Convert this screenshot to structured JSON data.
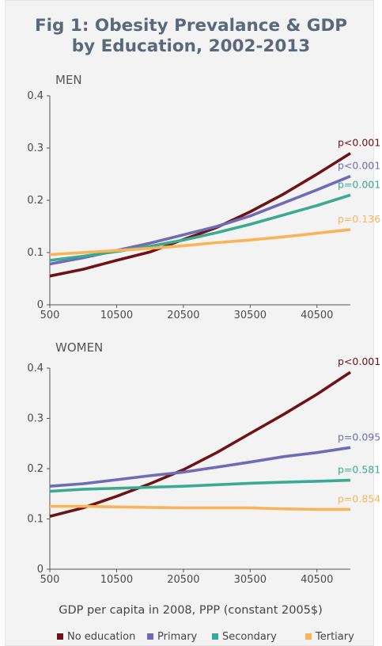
{
  "title_line1": "Fig 1: Obesity Prevalance & GDP",
  "title_line2": "by Education, 2002-2013",
  "xlabel": "GDP per capita in 2008, PPP (constant 2005$)",
  "colors": {
    "No education": "#6e1216",
    "Primary": "#6f6bb5",
    "Secondary": "#3aaa90",
    "Tertiary": "#f9b45a"
  },
  "chart_data": [
    {
      "type": "line",
      "title": "MEN",
      "x": [
        500,
        5500,
        10500,
        15500,
        20500,
        25500,
        30500,
        35500,
        40500,
        45500
      ],
      "xticks": [
        500,
        10500,
        20500,
        30500,
        40500
      ],
      "xlim": [
        500,
        45500
      ],
      "ylim": [
        0,
        0.4
      ],
      "yticks": [
        "0",
        "0.1",
        "0.2",
        "0.3",
        "0.4"
      ],
      "ytick_values": [
        0,
        0.1,
        0.2,
        0.3,
        0.4
      ],
      "series": [
        {
          "name": "No education",
          "values": [
            0.055,
            0.068,
            0.085,
            0.101,
            0.125,
            0.148,
            0.178,
            0.212,
            0.25,
            0.29
          ],
          "pvalue": "p<0.001"
        },
        {
          "name": "Primary",
          "values": [
            0.078,
            0.09,
            0.104,
            0.118,
            0.134,
            0.15,
            0.17,
            0.195,
            0.22,
            0.246
          ],
          "pvalue": "p<0.001"
        },
        {
          "name": "Secondary",
          "values": [
            0.085,
            0.093,
            0.102,
            0.112,
            0.124,
            0.138,
            0.154,
            0.172,
            0.19,
            0.21
          ],
          "pvalue": "p=0.001"
        },
        {
          "name": "Tertiary",
          "values": [
            0.096,
            0.1,
            0.104,
            0.108,
            0.113,
            0.119,
            0.124,
            0.13,
            0.137,
            0.144
          ],
          "pvalue": "p=0.136"
        }
      ]
    },
    {
      "type": "line",
      "title": "WOMEN",
      "x": [
        500,
        5500,
        10500,
        15500,
        20500,
        25500,
        30500,
        35500,
        40500,
        45500
      ],
      "xticks": [
        500,
        10500,
        20500,
        30500,
        40500
      ],
      "xlim": [
        500,
        45500
      ],
      "ylim": [
        0,
        0.4
      ],
      "yticks": [
        "0",
        "0.1",
        "0.2",
        "0.3",
        "0.4"
      ],
      "ytick_values": [
        0,
        0.1,
        0.2,
        0.3,
        0.4
      ],
      "series": [
        {
          "name": "No education",
          "values": [
            0.105,
            0.122,
            0.145,
            0.17,
            0.198,
            0.232,
            0.27,
            0.308,
            0.348,
            0.392
          ],
          "pvalue": "p<0.001"
        },
        {
          "name": "Primary",
          "values": [
            0.165,
            0.17,
            0.178,
            0.186,
            0.193,
            0.203,
            0.213,
            0.224,
            0.232,
            0.242
          ],
          "pvalue": "p=0.095"
        },
        {
          "name": "Secondary",
          "values": [
            0.155,
            0.159,
            0.161,
            0.163,
            0.165,
            0.168,
            0.171,
            0.173,
            0.175,
            0.177
          ],
          "pvalue": "p=0.581"
        },
        {
          "name": "Tertiary",
          "values": [
            0.125,
            0.125,
            0.124,
            0.123,
            0.122,
            0.122,
            0.122,
            0.12,
            0.119,
            0.119
          ],
          "pvalue": "p=0.854"
        }
      ]
    }
  ],
  "legend": [
    "No education",
    "Primary",
    "Secondary",
    "Tertiary"
  ]
}
